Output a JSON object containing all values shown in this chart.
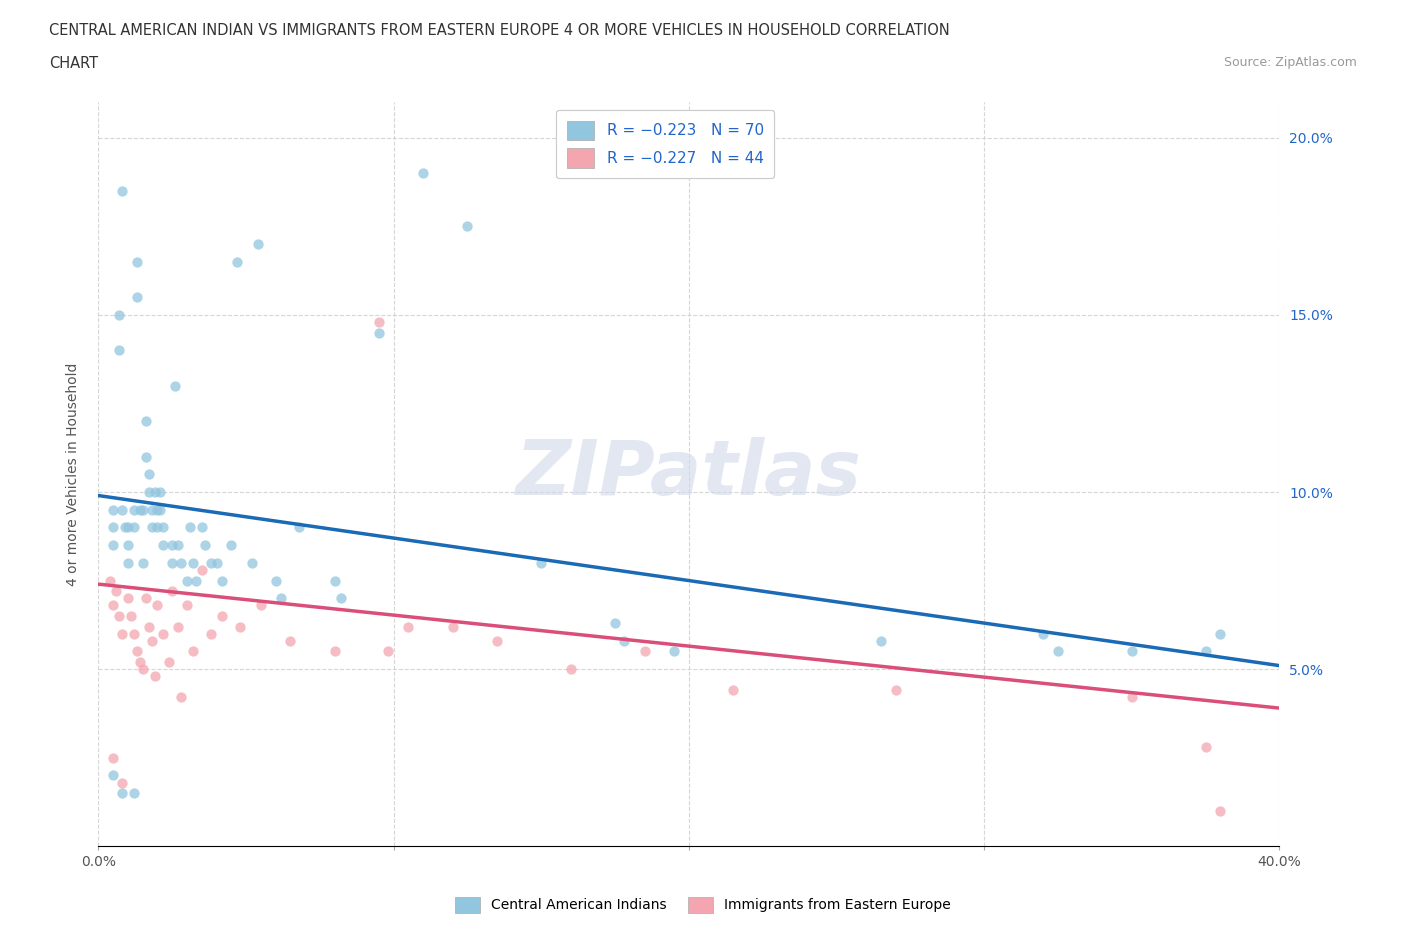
{
  "title_line1": "CENTRAL AMERICAN INDIAN VS IMMIGRANTS FROM EASTERN EUROPE 4 OR MORE VEHICLES IN HOUSEHOLD CORRELATION",
  "title_line2": "CHART",
  "source_text": "Source: ZipAtlas.com",
  "ylabel": "4 or more Vehicles in Household",
  "x_min": 0.0,
  "x_max": 0.4,
  "y_min": 0.0,
  "y_max": 0.21,
  "y_ticks": [
    0.05,
    0.1,
    0.15,
    0.2
  ],
  "y_tick_labels": [
    "5.0%",
    "10.0%",
    "15.0%",
    "20.0%"
  ],
  "blue_color": "#92c5de",
  "pink_color": "#f4a6b0",
  "blue_line_color": "#1a6ab5",
  "pink_line_color": "#d94f7a",
  "legend_label_blue": "Central American Indians",
  "legend_label_pink": "Immigrants from Eastern Europe",
  "watermark": "ZIPatlas",
  "blue_line_x0": 0.0,
  "blue_line_y0": 0.099,
  "blue_line_x1": 0.4,
  "blue_line_y1": 0.051,
  "pink_line_x0": 0.0,
  "pink_line_y0": 0.074,
  "pink_line_x1": 0.4,
  "pink_line_y1": 0.039,
  "blue_scatter_x": [
    0.005,
    0.005,
    0.005,
    0.007,
    0.007,
    0.008,
    0.008,
    0.009,
    0.01,
    0.01,
    0.01,
    0.012,
    0.012,
    0.013,
    0.013,
    0.014,
    0.015,
    0.015,
    0.016,
    0.016,
    0.017,
    0.017,
    0.018,
    0.018,
    0.019,
    0.02,
    0.02,
    0.021,
    0.021,
    0.022,
    0.022,
    0.025,
    0.025,
    0.026,
    0.027,
    0.028,
    0.03,
    0.031,
    0.032,
    0.033,
    0.035,
    0.036,
    0.038,
    0.04,
    0.042,
    0.045,
    0.047,
    0.052,
    0.054,
    0.06,
    0.062,
    0.068,
    0.08,
    0.082,
    0.095,
    0.11,
    0.125,
    0.15,
    0.175,
    0.178,
    0.195,
    0.265,
    0.32,
    0.325,
    0.35,
    0.375,
    0.38,
    0.005,
    0.008,
    0.012
  ],
  "blue_scatter_y": [
    0.095,
    0.09,
    0.085,
    0.15,
    0.14,
    0.095,
    0.185,
    0.09,
    0.09,
    0.085,
    0.08,
    0.095,
    0.09,
    0.165,
    0.155,
    0.095,
    0.095,
    0.08,
    0.12,
    0.11,
    0.105,
    0.1,
    0.095,
    0.09,
    0.1,
    0.095,
    0.09,
    0.1,
    0.095,
    0.09,
    0.085,
    0.085,
    0.08,
    0.13,
    0.085,
    0.08,
    0.075,
    0.09,
    0.08,
    0.075,
    0.09,
    0.085,
    0.08,
    0.08,
    0.075,
    0.085,
    0.165,
    0.08,
    0.17,
    0.075,
    0.07,
    0.09,
    0.075,
    0.07,
    0.145,
    0.19,
    0.175,
    0.08,
    0.063,
    0.058,
    0.055,
    0.058,
    0.06,
    0.055,
    0.055,
    0.055,
    0.06,
    0.02,
    0.015,
    0.015
  ],
  "pink_scatter_x": [
    0.004,
    0.005,
    0.006,
    0.007,
    0.008,
    0.01,
    0.011,
    0.012,
    0.013,
    0.014,
    0.015,
    0.016,
    0.017,
    0.018,
    0.019,
    0.02,
    0.022,
    0.024,
    0.025,
    0.027,
    0.028,
    0.03,
    0.032,
    0.035,
    0.038,
    0.042,
    0.048,
    0.055,
    0.065,
    0.08,
    0.095,
    0.098,
    0.105,
    0.12,
    0.135,
    0.16,
    0.185,
    0.215,
    0.27,
    0.35,
    0.375,
    0.38,
    0.005,
    0.008
  ],
  "pink_scatter_y": [
    0.075,
    0.068,
    0.072,
    0.065,
    0.06,
    0.07,
    0.065,
    0.06,
    0.055,
    0.052,
    0.05,
    0.07,
    0.062,
    0.058,
    0.048,
    0.068,
    0.06,
    0.052,
    0.072,
    0.062,
    0.042,
    0.068,
    0.055,
    0.078,
    0.06,
    0.065,
    0.062,
    0.068,
    0.058,
    0.055,
    0.148,
    0.055,
    0.062,
    0.062,
    0.058,
    0.05,
    0.055,
    0.044,
    0.044,
    0.042,
    0.028,
    0.01,
    0.025,
    0.018
  ]
}
